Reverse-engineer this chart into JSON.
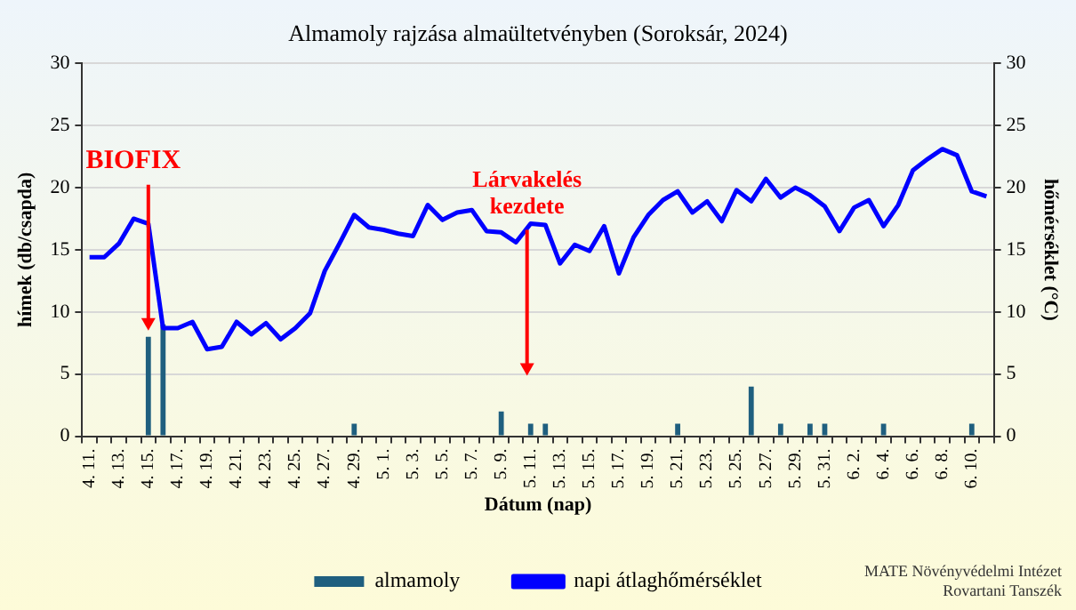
{
  "chart_data": {
    "type": "bar",
    "title": "Almamoly rajzása almaültetvényben (Soroksár, 2024)",
    "xlabel": "Dátum (nap)",
    "ylabel": "hímek (db/csapda)",
    "y2label": "hőmérséklet (°C)",
    "categories": [
      "4. 11.",
      null,
      "4. 13.",
      null,
      "4. 15.",
      null,
      "4. 17.",
      null,
      "4. 19.",
      null,
      "4. 21.",
      null,
      "4. 23.",
      null,
      "4. 25.",
      null,
      "4. 27.",
      null,
      "4. 29.",
      null,
      "5. 1.",
      null,
      "5. 3.",
      null,
      "5. 5.",
      null,
      "5. 7.",
      null,
      "5. 9.",
      null,
      "5. 11.",
      null,
      "5. 13.",
      null,
      "5. 15.",
      null,
      "5. 17.",
      null,
      "5. 19.",
      null,
      "5. 21.",
      null,
      "5. 23.",
      null,
      "5. 25.",
      null,
      "5. 27.",
      null,
      "5. 29.",
      null,
      "5. 31.",
      null,
      "6. 2.",
      null,
      "6. 4.",
      null,
      "6. 6.",
      null,
      "6. 8.",
      null,
      "6. 10.",
      null
    ],
    "series": [
      {
        "name": "almamoly",
        "color": "#1f5f7f",
        "values": [
          0,
          0,
          0,
          0,
          8,
          9,
          0,
          0,
          0,
          0,
          0,
          0,
          0,
          0,
          0,
          0,
          0,
          0,
          1,
          0,
          0,
          0,
          0,
          0,
          0,
          0,
          0,
          0,
          2,
          0,
          1,
          1,
          0,
          0,
          0,
          0,
          0,
          0,
          0,
          0,
          1,
          0,
          0,
          0,
          0,
          4,
          0,
          1,
          0,
          1,
          1,
          0,
          0,
          0,
          1,
          0,
          0,
          0,
          0,
          0,
          1,
          0
        ]
      },
      {
        "name": "napi átlaghőmérséklet",
        "type": "line",
        "axis": "y2",
        "color": "#0000ff",
        "values": [
          14.4,
          14.4,
          15.5,
          17.5,
          17.1,
          8.7,
          8.7,
          9.2,
          7.0,
          7.2,
          9.2,
          8.2,
          9.1,
          7.8,
          8.7,
          9.9,
          13.3,
          15.5,
          17.8,
          16.8,
          16.6,
          16.3,
          16.1,
          18.6,
          17.4,
          18.0,
          18.2,
          16.5,
          16.4,
          15.6,
          17.1,
          17.0,
          13.9,
          15.4,
          14.9,
          16.9,
          13.1,
          16.0,
          17.8,
          19.0,
          19.7,
          18.0,
          18.9,
          17.3,
          19.8,
          18.9,
          20.7,
          19.2,
          20.0,
          19.4,
          18.5,
          16.5,
          18.4,
          19.0,
          16.9,
          18.6,
          21.4,
          22.3,
          23.1,
          22.6,
          19.7,
          19.3
        ]
      }
    ],
    "ylim": [
      0,
      30
    ],
    "yticks": [
      0,
      5,
      10,
      15,
      20,
      25,
      30
    ],
    "y2lim": [
      0,
      30
    ],
    "y2ticks": [
      0,
      5,
      10,
      15,
      20,
      25,
      30
    ],
    "grid": "y",
    "legend": "bottom",
    "marker": "none",
    "line_style": "solid",
    "annotations": [
      {
        "text": "BIOFIX",
        "x": "4. 15.",
        "y": 8.5
      },
      "Lárvakelés kezdete",
      "MATE Növényvédelmi Intézet\nRovartani Tanszék"
    ]
  }
}
